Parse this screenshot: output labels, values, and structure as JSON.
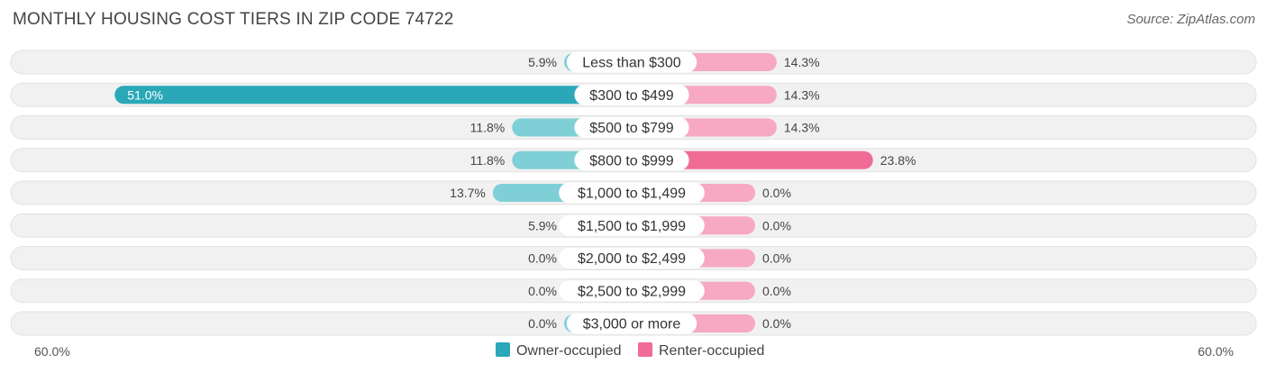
{
  "title": "MONTHLY HOUSING COST TIERS IN ZIP CODE 74722",
  "source": "Source: ZipAtlas.com",
  "colors": {
    "owner": "#2aa8b8",
    "owner_light": "#7fcfd7",
    "renter": "#f06b95",
    "renter_light": "#f7a8c2",
    "row_bg": "#f1f1f1"
  },
  "chart_data": {
    "type": "bar",
    "orientation": "diverging-horizontal",
    "categories": [
      "Less than $300",
      "$300 to $499",
      "$500 to $799",
      "$800 to $999",
      "$1,000 to $1,499",
      "$1,500 to $1,999",
      "$2,000 to $2,499",
      "$2,500 to $2,999",
      "$3,000 or more"
    ],
    "series": [
      {
        "name": "Owner-occupied",
        "values": [
          5.9,
          51.0,
          11.8,
          11.8,
          13.7,
          5.9,
          0.0,
          0.0,
          0.0
        ],
        "labels": [
          "5.9%",
          "51.0%",
          "11.8%",
          "11.8%",
          "13.7%",
          "5.9%",
          "0.0%",
          "0.0%",
          "0.0%"
        ]
      },
      {
        "name": "Renter-occupied",
        "values": [
          14.3,
          14.3,
          14.3,
          23.8,
          0.0,
          0.0,
          0.0,
          0.0,
          0.0
        ],
        "labels": [
          "14.3%",
          "14.3%",
          "14.3%",
          "23.8%",
          "0.0%",
          "0.0%",
          "0.0%",
          "0.0%",
          "0.0%"
        ]
      }
    ],
    "xlim": [
      -60,
      60
    ],
    "axis_labels": {
      "left": "60.0%",
      "right": "60.0%"
    },
    "legend_position": "bottom-center"
  }
}
